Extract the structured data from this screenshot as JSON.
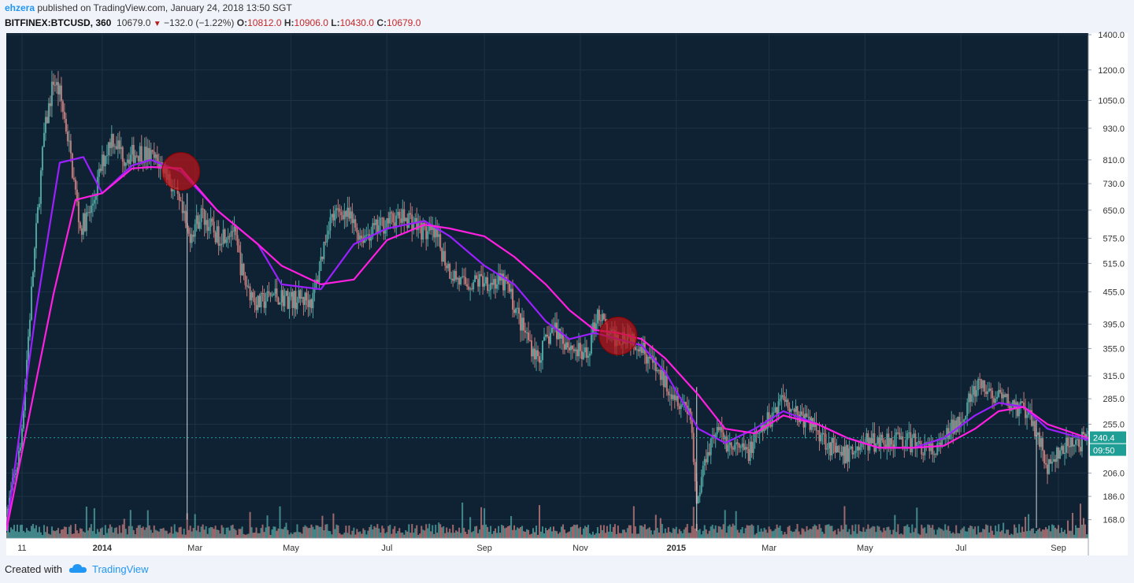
{
  "header": {
    "user": "ehzera",
    "published": "published on TradingView.com, January 24, 2018 13:50 SGT",
    "symbol": "BITFINEX:BTCUSD, 360",
    "last": "10679.0",
    "change": "−132.0 (−1.22%)",
    "o_label": "O:",
    "o_value": "10812.0",
    "h_label": "H:",
    "h_value": "10906.0",
    "l_label": "L:",
    "l_value": "10430.0",
    "c_label": "C:",
    "c_value": "10679.0"
  },
  "footer": {
    "created_with": "Created with",
    "brand": "TradingView"
  },
  "colors": {
    "background": "#0f2233",
    "grid": "#1d3344",
    "candle_up": "#4fa3a0",
    "candle_down": "#c07a7a",
    "ma_fast": "#9b1fff",
    "ma_slow": "#ff1fe0",
    "price_tag": "#1f9e95",
    "highlight": "#c0141a"
  },
  "chart_data": {
    "type": "candlestick",
    "y_scale": "log",
    "ylim": [
      155,
      1400
    ],
    "y_ticks": [
      1400.0,
      1200.0,
      1050.0,
      930.0,
      810.0,
      730.0,
      650.0,
      575.0,
      515.0,
      455.0,
      395.0,
      355.0,
      315.0,
      285.0,
      255.0,
      206.0,
      186.0,
      168.0
    ],
    "x_ticks": [
      "11",
      "2014",
      "Mar",
      "May",
      "Jul",
      "Sep",
      "Nov",
      "2015",
      "Mar",
      "May",
      "Jul",
      "Sep"
    ],
    "x_ticks_bold": [
      "2014",
      "2015"
    ],
    "x_range": [
      "2013-11-01",
      "2015-09-20"
    ],
    "price_series": {
      "x": [
        "2013-11-01",
        "2013-11-10",
        "2013-11-18",
        "2013-11-25",
        "2013-12-01",
        "2013-12-05",
        "2013-12-10",
        "2013-12-15",
        "2013-12-18",
        "2013-12-25",
        "2014-01-01",
        "2014-01-07",
        "2014-01-15",
        "2014-01-25",
        "2014-02-01",
        "2014-02-10",
        "2014-02-20",
        "2014-02-25",
        "2014-03-05",
        "2014-03-15",
        "2014-03-25",
        "2014-04-01",
        "2014-04-10",
        "2014-04-20",
        "2014-05-01",
        "2014-05-15",
        "2014-05-25",
        "2014-06-03",
        "2014-06-15",
        "2014-06-25",
        "2014-07-01",
        "2014-07-15",
        "2014-07-25",
        "2014-08-01",
        "2014-08-10",
        "2014-08-18",
        "2014-09-01",
        "2014-09-15",
        "2014-09-25",
        "2014-10-05",
        "2014-10-15",
        "2014-10-25",
        "2014-11-05",
        "2014-11-12",
        "2014-11-20",
        "2014-12-01",
        "2014-12-10",
        "2014-12-20",
        "2015-01-01",
        "2015-01-10",
        "2015-01-14",
        "2015-01-20",
        "2015-01-26",
        "2015-02-05",
        "2015-02-15",
        "2015-03-01",
        "2015-03-10",
        "2015-03-20",
        "2015-04-01",
        "2015-04-15",
        "2015-05-01",
        "2015-05-20",
        "2015-06-01",
        "2015-06-15",
        "2015-07-01",
        "2015-07-12",
        "2015-07-25",
        "2015-08-10",
        "2015-08-18",
        "2015-08-25",
        "2015-09-05",
        "2015-09-20"
      ],
      "y": [
        170,
        230,
        500,
        900,
        1150,
        1080,
        900,
        700,
        600,
        650,
        800,
        900,
        820,
        840,
        820,
        780,
        650,
        580,
        640,
        580,
        600,
        480,
        430,
        450,
        440,
        440,
        620,
        650,
        580,
        600,
        620,
        630,
        590,
        580,
        500,
        470,
        480,
        470,
        390,
        340,
        390,
        360,
        340,
        420,
        370,
        380,
        360,
        320,
        290,
        270,
        180,
        225,
        250,
        230,
        225,
        260,
        290,
        265,
        250,
        220,
        235,
        240,
        235,
        225,
        265,
        300,
        285,
        270,
        250,
        210,
        230,
        240
      ]
    },
    "series": [
      {
        "name": "",
        "color": "#9b1fff",
        "x": [
          "2013-11-01",
          "2013-11-20",
          "2013-12-05",
          "2013-12-20",
          "2014-01-01",
          "2014-01-20",
          "2014-02-01",
          "2014-02-20",
          "2014-03-15",
          "2014-04-10",
          "2014-04-25",
          "2014-05-20",
          "2014-06-10",
          "2014-07-01",
          "2014-07-25",
          "2014-08-10",
          "2014-09-01",
          "2014-09-20",
          "2014-10-10",
          "2014-10-25",
          "2014-11-10",
          "2014-11-25",
          "2014-12-10",
          "2014-12-25",
          "2015-01-15",
          "2015-02-01",
          "2015-02-20",
          "2015-03-10",
          "2015-04-01",
          "2015-04-20",
          "2015-05-10",
          "2015-06-01",
          "2015-06-20",
          "2015-07-10",
          "2015-07-25",
          "2015-08-10",
          "2015-08-25",
          "2015-09-20"
        ],
        "y": [
          160,
          420,
          800,
          820,
          700,
          790,
          810,
          770,
          650,
          560,
          470,
          460,
          560,
          600,
          620,
          580,
          510,
          470,
          400,
          370,
          380,
          370,
          360,
          320,
          250,
          235,
          250,
          270,
          255,
          240,
          230,
          230,
          240,
          265,
          280,
          275,
          250,
          238
        ]
      },
      {
        "name": "",
        "color": "#ff1fe0",
        "x": [
          "2013-11-01",
          "2013-12-01",
          "2013-12-15",
          "2014-01-01",
          "2014-01-20",
          "2014-02-01",
          "2014-02-20",
          "2014-03-15",
          "2014-04-10",
          "2014-04-25",
          "2014-05-20",
          "2014-06-10",
          "2014-07-01",
          "2014-07-25",
          "2014-08-10",
          "2014-09-01",
          "2014-09-20",
          "2014-10-10",
          "2014-10-25",
          "2014-11-10",
          "2014-11-25",
          "2014-12-10",
          "2014-12-25",
          "2015-01-15",
          "2015-02-01",
          "2015-02-20",
          "2015-03-10",
          "2015-04-01",
          "2015-04-20",
          "2015-05-10",
          "2015-06-01",
          "2015-06-20",
          "2015-07-10",
          "2015-07-25",
          "2015-08-10",
          "2015-08-25",
          "2015-09-20"
        ],
        "y": [
          160,
          450,
          680,
          700,
          780,
          785,
          780,
          650,
          560,
          510,
          470,
          480,
          570,
          610,
          600,
          580,
          530,
          470,
          420,
          385,
          380,
          370,
          340,
          290,
          250,
          245,
          265,
          255,
          240,
          230,
          230,
          232,
          250,
          270,
          275,
          255,
          240
        ]
      }
    ],
    "price_tag": "240.4",
    "time_tag": "09:50",
    "highlights": [
      {
        "x": "2014-02-20",
        "y": 770
      },
      {
        "x": "2014-11-25",
        "y": 375
      }
    ]
  }
}
